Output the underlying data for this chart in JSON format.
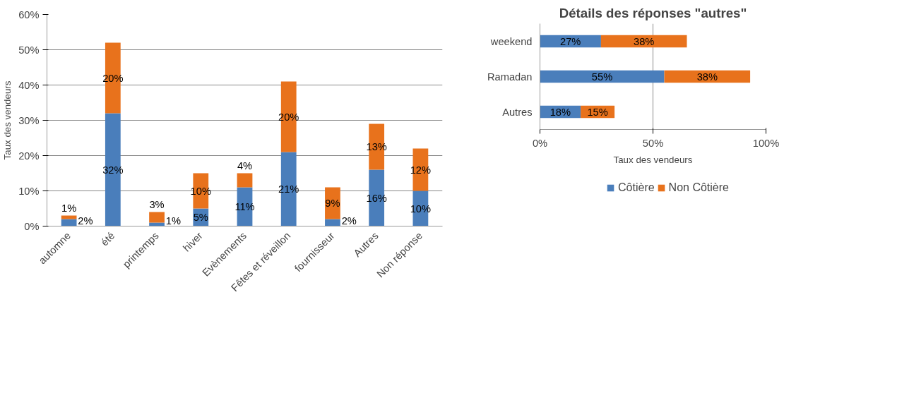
{
  "chart_data": [
    {
      "type": "bar",
      "stacked": true,
      "categories": [
        "automne",
        "été",
        "printemps",
        "hiver",
        "Evènements",
        "Fêtes et réveillon",
        "fournisseur",
        "Autres",
        "Non réponse"
      ],
      "ylabel": "Taux des vendeurs",
      "ylim": [
        0,
        60
      ],
      "yticks": [
        {
          "value": 0,
          "label": "0%"
        },
        {
          "value": 10,
          "label": "10%"
        },
        {
          "value": 20,
          "label": "20%"
        },
        {
          "value": 30,
          "label": "30%"
        },
        {
          "value": 40,
          "label": "40%"
        },
        {
          "value": 50,
          "label": "50%"
        },
        {
          "value": 60,
          "label": "60%"
        }
      ],
      "grid": "y",
      "series": [
        {
          "color": "#4a7ebb",
          "values": [
            2,
            32,
            1,
            5,
            11,
            21,
            2,
            16,
            10
          ],
          "value_labels": [
            "2%",
            "32%",
            "1%",
            "5%",
            "11%",
            "21%",
            "2%",
            "16%",
            "10%"
          ]
        },
        {
          "color": "#e8721c",
          "values": [
            1,
            20,
            3,
            10,
            4,
            20,
            9,
            13,
            12
          ],
          "value_labels": [
            "1%",
            "20%",
            "3%",
            "10%",
            "4%",
            "20%",
            "9%",
            "13%",
            "12%"
          ]
        }
      ]
    },
    {
      "type": "bar",
      "stacked": true,
      "orientation": "horizontal",
      "title": "Détails des réponses \"autres\"",
      "categories": [
        "weekend",
        "Ramadan",
        "Autres"
      ],
      "xlabel": "Taux des vendeurs",
      "xlim": [
        0,
        100
      ],
      "xticks": [
        {
          "value": 0,
          "label": "0%"
        },
        {
          "value": 50,
          "label": "50%"
        },
        {
          "value": 100,
          "label": "100%"
        }
      ],
      "grid": "x",
      "legend": "bottom",
      "series": [
        {
          "name": "Côtière",
          "color": "#4a7ebb",
          "values": [
            27,
            55,
            18
          ],
          "value_labels": [
            "27%",
            "55%",
            "18%"
          ]
        },
        {
          "name": "Non Côtière",
          "color": "#e8721c",
          "values": [
            38,
            38,
            15
          ],
          "value_labels": [
            "38%",
            "38%",
            "15%"
          ]
        }
      ]
    }
  ]
}
